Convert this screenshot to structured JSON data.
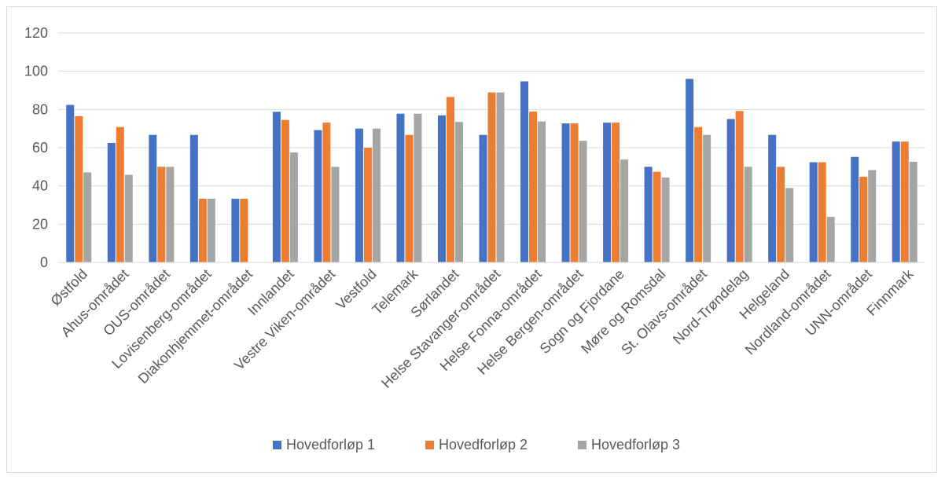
{
  "chart_data": {
    "type": "bar",
    "title": "",
    "xlabel": "",
    "ylabel": "",
    "ylim": [
      0,
      120
    ],
    "yticks": [
      0,
      20,
      40,
      60,
      80,
      100,
      120
    ],
    "grid": true,
    "legend_position": "bottom",
    "categories": [
      "Østfold",
      "Ahus-området",
      "OUS-området",
      "Lovisenberg-området",
      "Diakonhjemmet-området",
      "Innlandet",
      "Vestre Viken-området",
      "Vestfold",
      "Telemark",
      "Sørlandet",
      "Helse Stavanger-området",
      "Helse Fonna-området",
      "Helse Bergen-området",
      "Sogn og Fjordane",
      "Møre og Romsdal",
      "St. Olavs-området",
      "Nord-Trøndelag",
      "Helgeland",
      "Nordland-området",
      "UNN-området",
      "Finnmark"
    ],
    "series": [
      {
        "name": "Hovedforløp 1",
        "color": "#4472c4",
        "values": [
          82.4,
          62.5,
          66.7,
          66.7,
          33.3,
          78.8,
          69.2,
          70.0,
          77.8,
          76.9,
          66.7,
          94.7,
          72.7,
          73.1,
          50.0,
          96.0,
          75.0,
          66.7,
          52.4,
          55.2,
          63.2
        ]
      },
      {
        "name": "Hovedforløp 2",
        "color": "#ed7d31",
        "values": [
          76.5,
          70.8,
          50.0,
          33.3,
          33.3,
          74.5,
          73.1,
          60.0,
          66.7,
          86.5,
          88.9,
          78.9,
          72.7,
          73.1,
          47.4,
          70.8,
          79.2,
          50.0,
          52.4,
          44.8,
          63.2
        ]
      },
      {
        "name": "Hovedforløp 3",
        "color": "#a5a5a5",
        "values": [
          47.1,
          45.8,
          50.0,
          33.3,
          0,
          57.5,
          50.0,
          70.0,
          77.8,
          73.5,
          88.9,
          73.7,
          63.6,
          53.8,
          44.4,
          66.7,
          50.0,
          38.9,
          23.8,
          48.3,
          52.6
        ]
      }
    ]
  }
}
